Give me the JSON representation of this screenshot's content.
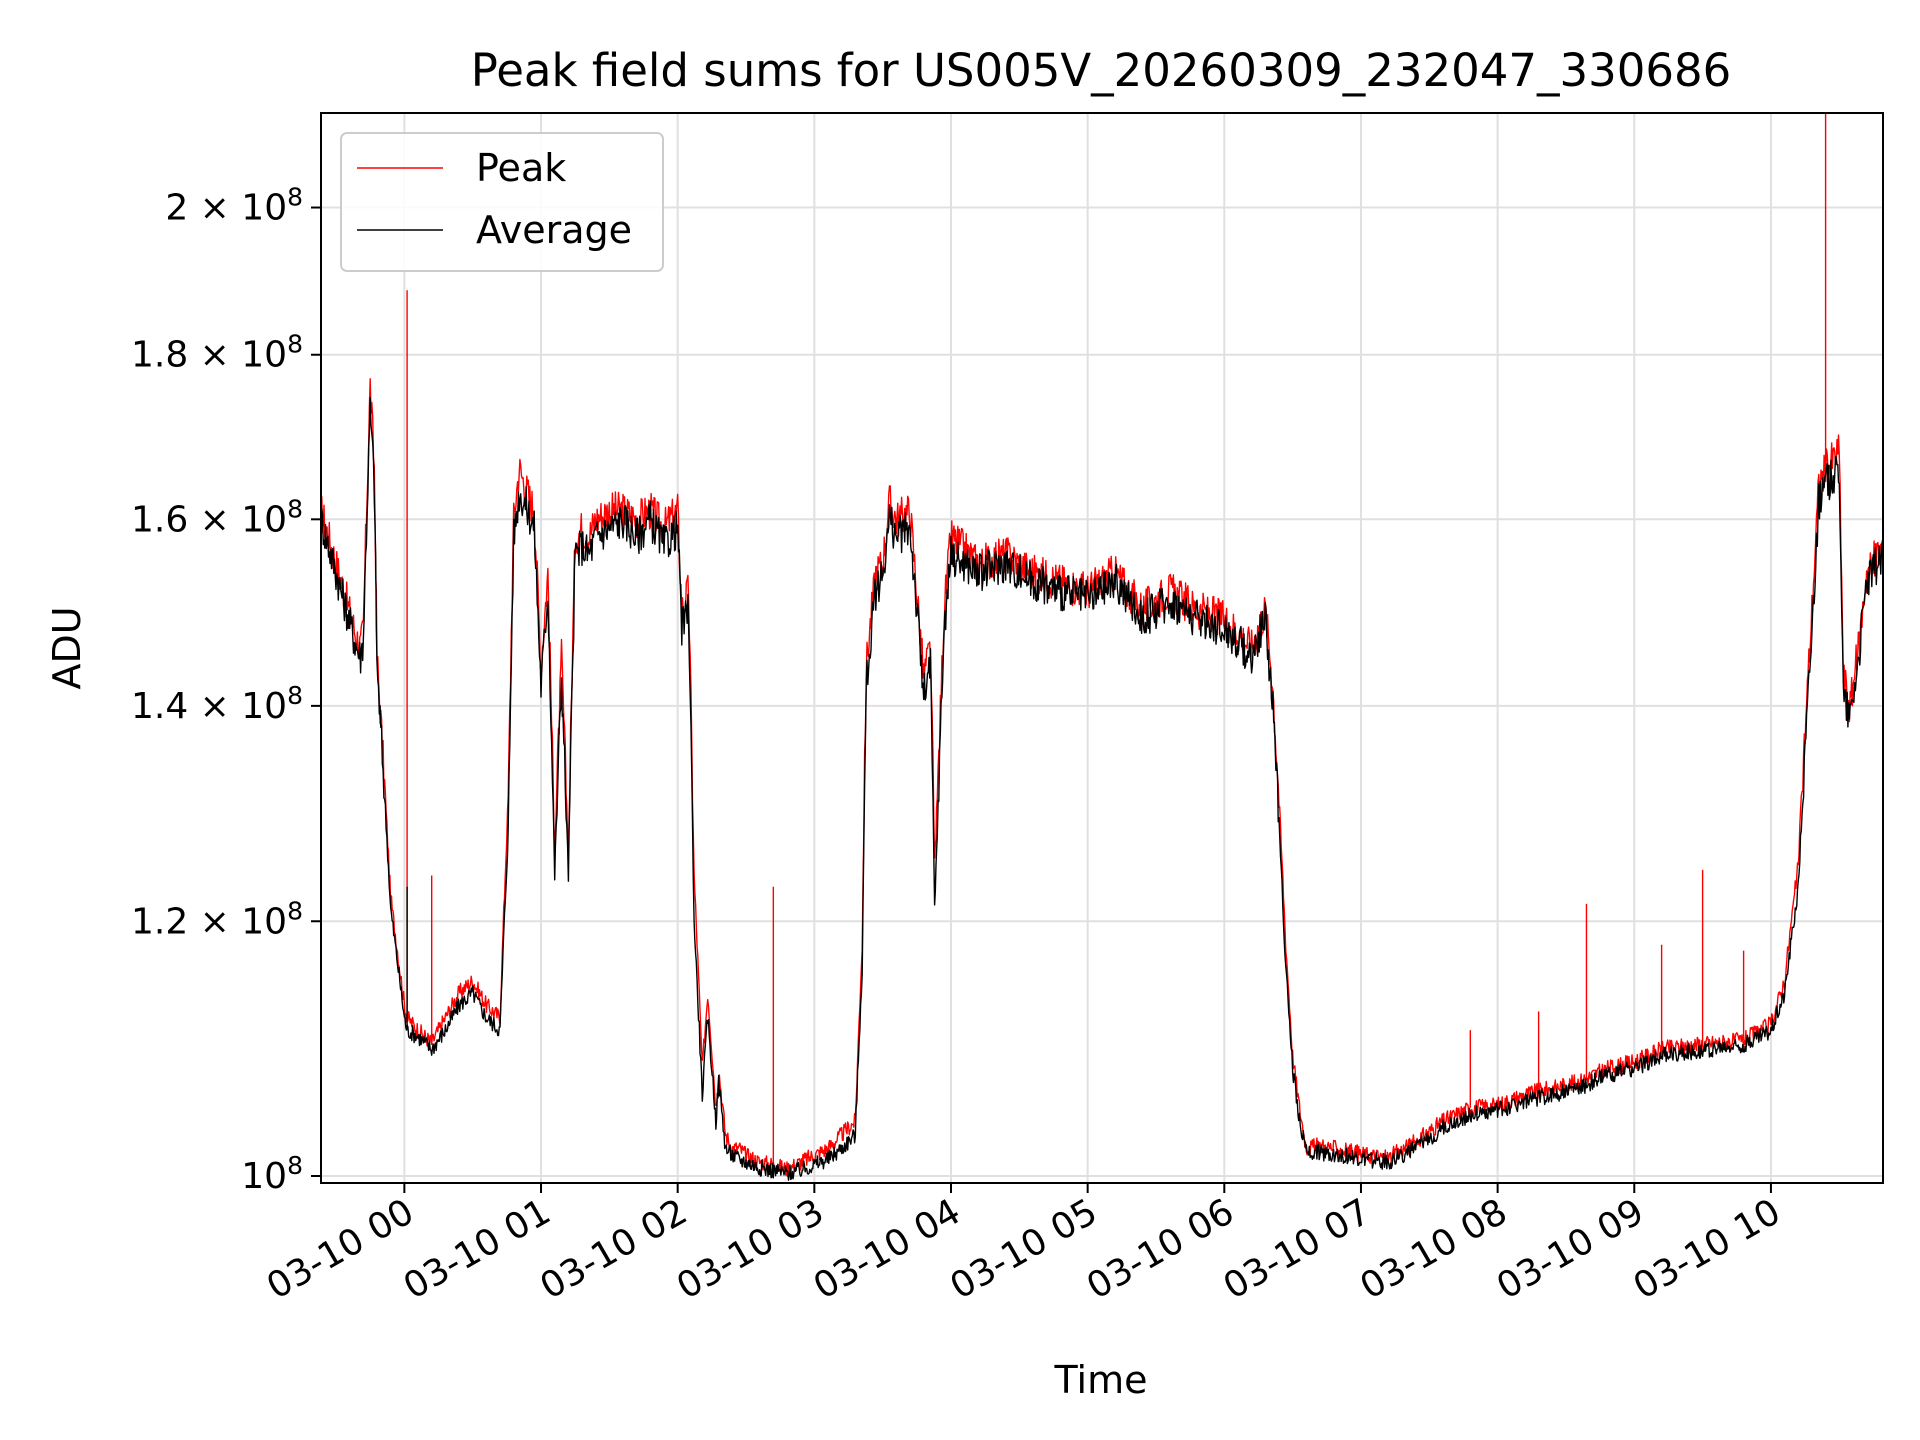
{
  "chart_data": {
    "type": "line",
    "title": "Peak field sums for US005V_20260309_232047_330686",
    "xlabel": "Time",
    "ylabel": "ADU",
    "yscale": "log",
    "ylim": [
      99500000,
      214000000
    ],
    "xlim_hours": [
      -0.61,
      10.82
    ],
    "x_ticks": [
      {
        "value": 0,
        "label": "03-10 00"
      },
      {
        "value": 1,
        "label": "03-10 01"
      },
      {
        "value": 2,
        "label": "03-10 02"
      },
      {
        "value": 3,
        "label": "03-10 03"
      },
      {
        "value": 4,
        "label": "03-10 04"
      },
      {
        "value": 5,
        "label": "03-10 05"
      },
      {
        "value": 6,
        "label": "03-10 06"
      },
      {
        "value": 7,
        "label": "03-10 07"
      },
      {
        "value": 8,
        "label": "03-10 08"
      },
      {
        "value": 9,
        "label": "03-10 09"
      },
      {
        "value": 10,
        "label": "03-10 10"
      }
    ],
    "y_ticks": [
      {
        "value": 100000000,
        "base": "10",
        "exp": "8"
      },
      {
        "value": 120000000,
        "base": "1.2 × 10",
        "exp": "8"
      },
      {
        "value": 140000000,
        "base": "1.4 × 10",
        "exp": "8"
      },
      {
        "value": 160000000,
        "base": "1.6 × 10",
        "exp": "8"
      },
      {
        "value": 180000000,
        "base": "1.8 × 10",
        "exp": "8"
      },
      {
        "value": 200000000,
        "base": "2 × 10",
        "exp": "8"
      }
    ],
    "grid": true,
    "legend_position": "top-left",
    "series": [
      {
        "name": "Peak",
        "color": "#ff0000",
        "x_hours": [
          -0.61,
          -0.5,
          -0.35,
          -0.32,
          -0.3,
          -0.25,
          -0.22,
          -0.2,
          -0.1,
          0,
          0.02,
          0.1,
          0.2,
          0.3,
          0.4,
          0.5,
          0.6,
          0.7,
          0.76,
          0.8,
          0.84,
          0.88,
          0.95,
          1.0,
          1.05,
          1.1,
          1.15,
          1.2,
          1.25,
          1.3,
          1.35,
          1.4,
          1.5,
          1.6,
          1.7,
          1.8,
          1.9,
          2.0,
          2.03,
          2.08,
          2.12,
          2.18,
          2.22,
          2.28,
          2.3,
          2.35,
          2.4,
          2.45,
          2.5,
          2.6,
          2.7,
          2.8,
          2.9,
          3.0,
          3.1,
          3.2,
          3.3,
          3.35,
          3.38,
          3.42,
          3.45,
          3.5,
          3.55,
          3.6,
          3.7,
          3.75,
          3.8,
          3.85,
          3.88,
          3.9,
          3.95,
          4.0,
          4.2,
          4.4,
          4.6,
          4.8,
          5.0,
          5.2,
          5.4,
          5.6,
          5.8,
          6.0,
          6.2,
          6.3,
          6.35,
          6.4,
          6.45,
          6.5,
          6.55,
          6.6,
          6.7,
          6.8,
          6.9,
          7.0,
          7.2,
          7.4,
          7.6,
          7.8,
          8.0,
          8.2,
          8.4,
          8.6,
          8.8,
          9.0,
          9.2,
          9.4,
          9.6,
          9.8,
          10.0,
          10.1,
          10.2,
          10.3,
          10.35,
          10.4,
          10.45,
          10.5,
          10.53,
          10.58,
          10.65,
          10.7,
          10.82
        ],
        "values": [
          161000000,
          155000000,
          147000000,
          146000000,
          148000000,
          176000000,
          166000000,
          145000000,
          122000000,
          113000000,
          112000000,
          111000000,
          110000000,
          112000000,
          114000000,
          115000000,
          113000000,
          112000000,
          131000000,
          160000000,
          166000000,
          164000000,
          161000000,
          144000000,
          154000000,
          126000000,
          145000000,
          126000000,
          158000000,
          159000000,
          158000000,
          160000000,
          161000000,
          161000000,
          160000000,
          161000000,
          159000000,
          161000000,
          150000000,
          152000000,
          124000000,
          108000000,
          114000000,
          105000000,
          108000000,
          103000000,
          102000000,
          102000000,
          101500000,
          101000000,
          100800000,
          100500000,
          101000000,
          101500000,
          102000000,
          103000000,
          104000000,
          118000000,
          144000000,
          150000000,
          154000000,
          155000000,
          162000000,
          160000000,
          161000000,
          152000000,
          143000000,
          146000000,
          125000000,
          131000000,
          150000000,
          158000000,
          155000000,
          156000000,
          154000000,
          153000000,
          152000000,
          154000000,
          150000000,
          152000000,
          150000000,
          149000000,
          146000000,
          150000000,
          143000000,
          131000000,
          118000000,
          109000000,
          105000000,
          102000000,
          102200000,
          102000000,
          101800000,
          101600000,
          101300000,
          102500000,
          104000000,
          105000000,
          105200000,
          106000000,
          106500000,
          107000000,
          108000000,
          108500000,
          109500000,
          109800000,
          110000000,
          110200000,
          111500000,
          115000000,
          125000000,
          150000000,
          164000000,
          166000000,
          167000000,
          168000000,
          143000000,
          140000000,
          147000000,
          154000000,
          157000000
        ],
        "spikes": [
          {
            "x_hours": 0.02,
            "value": 188500000
          },
          {
            "x_hours": 0.2,
            "value": 124000000
          },
          {
            "x_hours": 2.7,
            "value": 123000000
          },
          {
            "x_hours": 7.8,
            "value": 111000000
          },
          {
            "x_hours": 8.3,
            "value": 112500000
          },
          {
            "x_hours": 8.65,
            "value": 121500000
          },
          {
            "x_hours": 9.2,
            "value": 118000000
          },
          {
            "x_hours": 9.5,
            "value": 124500000
          },
          {
            "x_hours": 9.8,
            "value": 117500000
          },
          {
            "x_hours": 10.4,
            "value": 214000000
          }
        ]
      },
      {
        "name": "Average",
        "color": "#000000",
        "x_hours": [
          -0.61,
          -0.5,
          -0.35,
          -0.32,
          -0.3,
          -0.25,
          -0.22,
          -0.2,
          -0.1,
          0,
          0.02,
          0.1,
          0.2,
          0.3,
          0.4,
          0.5,
          0.6,
          0.7,
          0.76,
          0.8,
          0.84,
          0.88,
          0.95,
          1.0,
          1.05,
          1.1,
          1.15,
          1.2,
          1.25,
          1.3,
          1.35,
          1.4,
          1.5,
          1.6,
          1.7,
          1.8,
          1.9,
          2.0,
          2.03,
          2.08,
          2.12,
          2.18,
          2.22,
          2.28,
          2.3,
          2.35,
          2.4,
          2.45,
          2.5,
          2.6,
          2.7,
          2.8,
          2.9,
          3.0,
          3.1,
          3.2,
          3.3,
          3.35,
          3.38,
          3.42,
          3.45,
          3.5,
          3.55,
          3.6,
          3.7,
          3.75,
          3.8,
          3.85,
          3.88,
          3.9,
          3.95,
          4.0,
          4.2,
          4.4,
          4.6,
          4.8,
          5.0,
          5.2,
          5.4,
          5.6,
          5.8,
          6.0,
          6.2,
          6.3,
          6.35,
          6.4,
          6.45,
          6.5,
          6.55,
          6.6,
          6.7,
          6.8,
          6.9,
          7.0,
          7.2,
          7.4,
          7.6,
          7.8,
          8.0,
          8.2,
          8.4,
          8.6,
          8.8,
          9.0,
          9.2,
          9.4,
          9.6,
          9.8,
          10.0,
          10.1,
          10.2,
          10.3,
          10.35,
          10.4,
          10.45,
          10.5,
          10.53,
          10.58,
          10.65,
          10.7,
          10.82
        ],
        "values": [
          160000000,
          154000000,
          146000000,
          145000000,
          147000000,
          173000000,
          164000000,
          144000000,
          121000000,
          112000000,
          111000000,
          110500000,
          109500000,
          111000000,
          113000000,
          114000000,
          112000000,
          111000000,
          128000000,
          158000000,
          163000000,
          162000000,
          159000000,
          142000000,
          152000000,
          124000000,
          143000000,
          124000000,
          156000000,
          157000000,
          156000000,
          158000000,
          159000000,
          160000000,
          158000000,
          160000000,
          157000000,
          159000000,
          148000000,
          150000000,
          120000000,
          106000000,
          112000000,
          104000000,
          107000000,
          102000000,
          101500000,
          101200000,
          101000000,
          100600000,
          100400000,
          100200000,
          100400000,
          100800000,
          101200000,
          102000000,
          103000000,
          116000000,
          142000000,
          148000000,
          152000000,
          154000000,
          160000000,
          158000000,
          159000000,
          150000000,
          141000000,
          144000000,
          121000000,
          128000000,
          148000000,
          156000000,
          154000000,
          155000000,
          153000000,
          152000000,
          151000000,
          153000000,
          149000000,
          151000000,
          149000000,
          148000000,
          145000000,
          149000000,
          141000000,
          129000000,
          116000000,
          108000000,
          104000000,
          101800000,
          101700000,
          101600000,
          101400000,
          101200000,
          101000000,
          102000000,
          103500000,
          104500000,
          104800000,
          105500000,
          106000000,
          106500000,
          107500000,
          108000000,
          109000000,
          109300000,
          109500000,
          109800000,
          111000000,
          114000000,
          123000000,
          148000000,
          162000000,
          164000000,
          165000000,
          166000000,
          141000000,
          139000000,
          146000000,
          153000000,
          156000000
        ],
        "spikes": [
          {
            "x_hours": 0.02,
            "value": 123000000
          }
        ]
      }
    ]
  }
}
